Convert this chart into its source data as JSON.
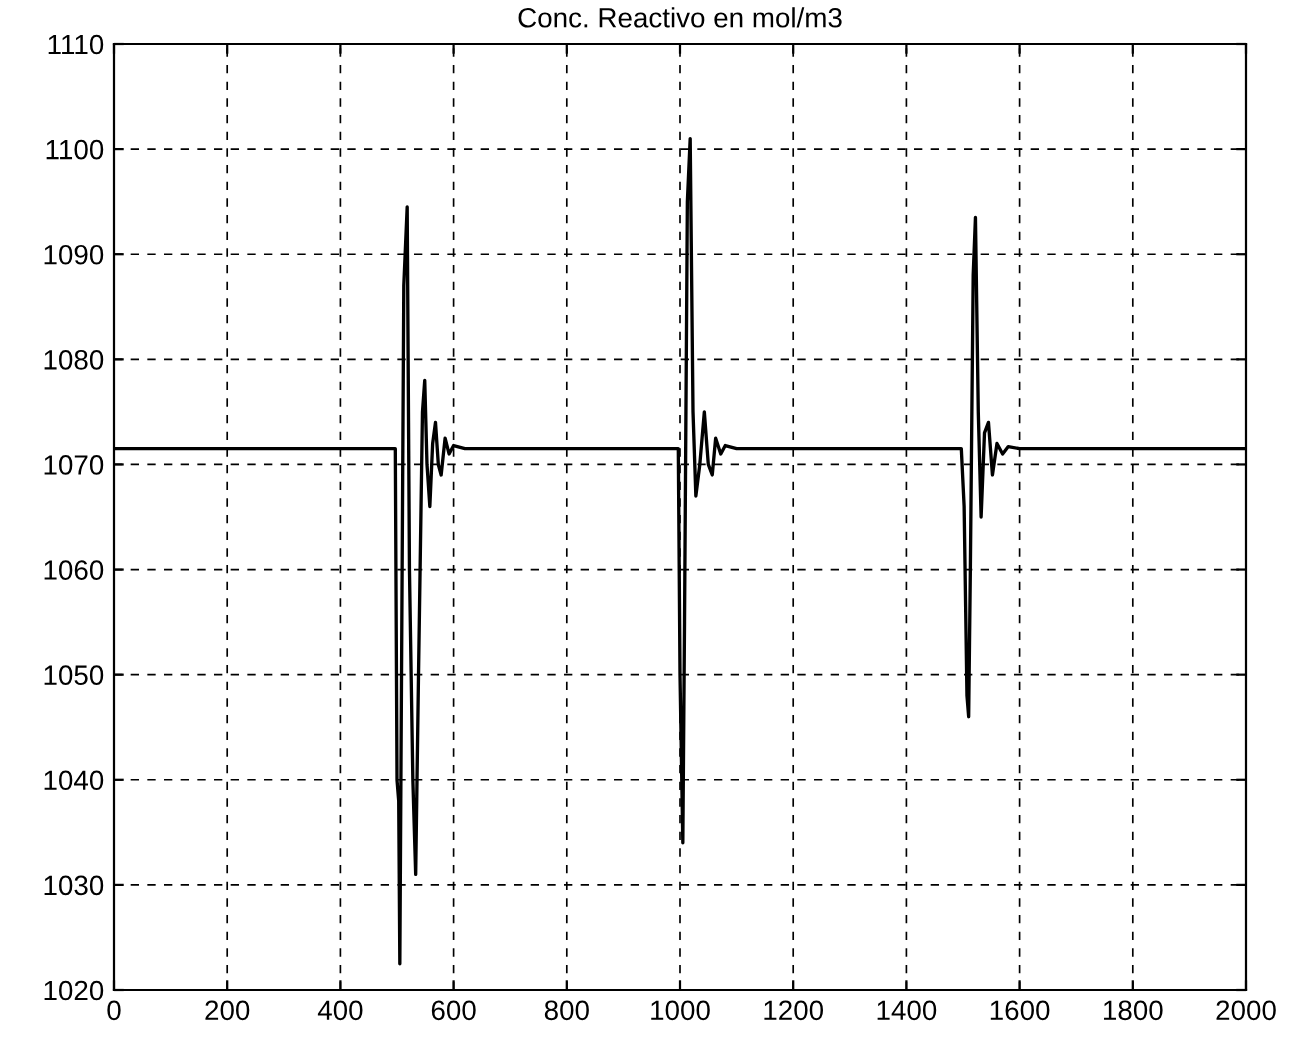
{
  "chart_data": {
    "type": "line",
    "title": "Conc. Reactivo en mol/m3",
    "x": [
      0,
      497,
      500,
      503,
      505,
      508,
      512,
      518,
      522,
      528,
      533,
      538,
      545,
      549,
      553,
      558,
      563,
      568,
      573,
      578,
      585,
      592,
      600,
      620,
      997,
      1000,
      1005,
      1008,
      1013,
      1018,
      1023,
      1028,
      1035,
      1043,
      1050,
      1057,
      1063,
      1072,
      1080,
      1100,
      1497,
      1502,
      1507,
      1510,
      1513,
      1518,
      1522,
      1527,
      1532,
      1538,
      1545,
      1552,
      1560,
      1570,
      1580,
      1600,
      2000
    ],
    "series": [
      {
        "color": "#000000",
        "values": [
          1071.5,
          1071.5,
          1040,
          1038,
          1022.5,
          1050,
          1087,
          1094.5,
          1060,
          1040,
          1031,
          1050,
          1075,
          1078,
          1070,
          1066,
          1072,
          1074,
          1070,
          1069,
          1072.5,
          1071,
          1071.8,
          1071.5,
          1071.5,
          1050,
          1034,
          1055,
          1095,
          1101,
          1075,
          1067,
          1070,
          1075,
          1070,
          1069,
          1072.5,
          1071,
          1071.8,
          1071.5,
          1071.5,
          1066,
          1048,
          1046,
          1060,
          1088,
          1093.5,
          1075,
          1065,
          1073,
          1074,
          1069,
          1072,
          1071,
          1071.7,
          1071.5,
          1071.5
        ]
      }
    ],
    "xlim": [
      0,
      2000
    ],
    "xticks": [
      0,
      200,
      400,
      600,
      800,
      1000,
      1200,
      1400,
      1600,
      1800,
      2000
    ],
    "ylim": [
      1020,
      1110
    ],
    "yticks": [
      1020,
      1030,
      1040,
      1050,
      1060,
      1070,
      1080,
      1090,
      1100,
      1110
    ],
    "grid": true,
    "line_style": "solid"
  }
}
